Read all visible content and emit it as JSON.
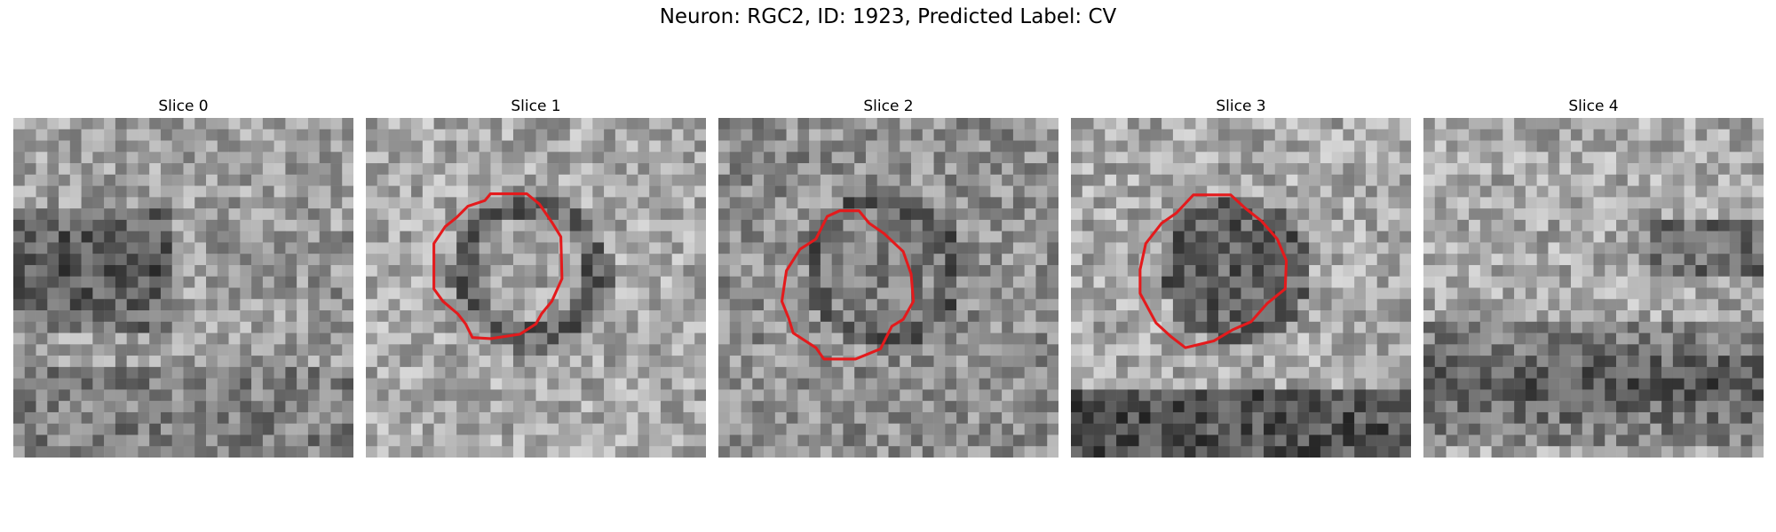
{
  "figure": {
    "title": "Neuron: RGC2, ID: 1923, Predicted Label: CV"
  },
  "panels": [
    {
      "title": "Slice 0",
      "contour": false,
      "texture": "dark-band-left"
    },
    {
      "title": "Slice 1",
      "contour": true,
      "texture": "ring-light-center"
    },
    {
      "title": "Slice 2",
      "contour": true,
      "texture": "ring-textured"
    },
    {
      "title": "Slice 3",
      "contour": true,
      "texture": "ring-dark-center"
    },
    {
      "title": "Slice 4",
      "contour": false,
      "texture": "dark-band-bottom"
    }
  ],
  "colors": {
    "contour": "#e41a1c",
    "background": "#ffffff"
  }
}
